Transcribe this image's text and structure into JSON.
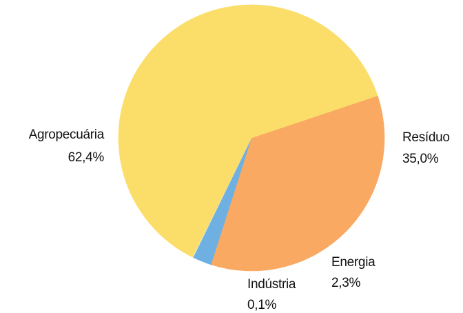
{
  "chart_data": {
    "type": "pie",
    "title": "",
    "slices": [
      {
        "name": "Resíduo",
        "value_label": "35,0%",
        "value": 35.0,
        "color": "#F9A962"
      },
      {
        "name": "Energia",
        "value_label": "2,3%",
        "value": 2.3,
        "color": "#6FB0E2"
      },
      {
        "name": "Indústria",
        "value_label": "0,1%",
        "value": 0.1,
        "color": "#ECEBC6"
      },
      {
        "name": "Agropecuária",
        "value_label": "62,4%",
        "value": 62.4,
        "color": "#FBDE6A"
      }
    ]
  }
}
